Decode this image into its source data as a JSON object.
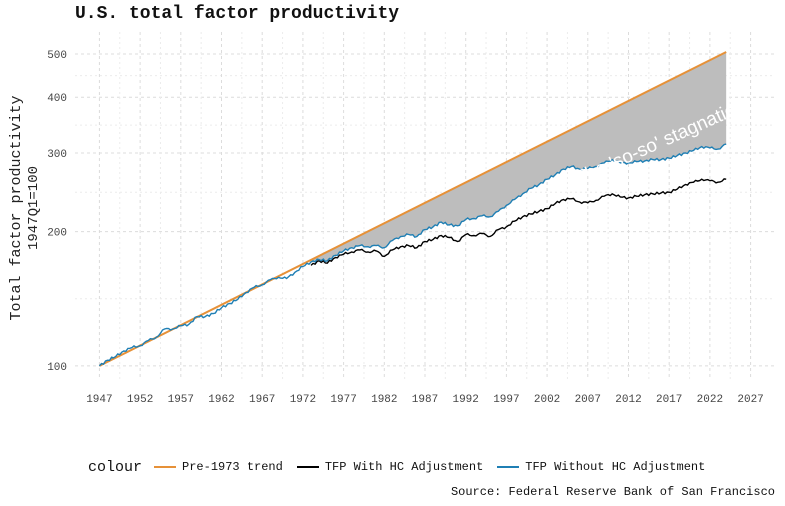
{
  "chart_data": {
    "type": "line",
    "title": "U.S. total factor productivity",
    "ylabel_line1": "Total factor productivity",
    "ylabel_line2": "1947Q1=100",
    "xlabel": "",
    "y_scale": "log",
    "ylim": [
      93,
      560
    ],
    "xlim": [
      1944,
      2030
    ],
    "y_ticks": [
      100,
      200,
      300,
      400,
      500
    ],
    "x_ticks": [
      1947,
      1952,
      1957,
      1962,
      1967,
      1972,
      1977,
      1982,
      1987,
      1992,
      1997,
      2002,
      2007,
      2012,
      2017,
      2022,
      2027
    ],
    "grid": true,
    "legend_title": "colour",
    "legend_position": "bottom",
    "annotation": "The 'so-so' stagnation",
    "source": "Source: Federal Reserve Bank of San Francisco",
    "shaded_region": "between Pre-1973 trend and TFP Without HC Adjustment after 1973",
    "series": [
      {
        "name": "Pre-1973 trend",
        "color": "#e69138",
        "x": [
          1947,
          2024
        ],
        "values": [
          100,
          505
        ]
      },
      {
        "name": "TFP With HC Adjustment",
        "color": "#000000",
        "x": [
          1973,
          1974,
          1975,
          1976,
          1977,
          1978,
          1979,
          1980,
          1981,
          1982,
          1983,
          1984,
          1985,
          1986,
          1987,
          1988,
          1989,
          1990,
          1991,
          1992,
          1993,
          1994,
          1995,
          1996,
          1997,
          1998,
          1999,
          2000,
          2001,
          2002,
          2003,
          2004,
          2005,
          2006,
          2007,
          2008,
          2009,
          2010,
          2011,
          2012,
          2013,
          2014,
          2015,
          2016,
          2017,
          2018,
          2019,
          2020,
          2021,
          2022,
          2023,
          2024
        ],
        "values": [
          168,
          172,
          170,
          175,
          178,
          180,
          182,
          180,
          181,
          176,
          182,
          185,
          186,
          184,
          190,
          192,
          196,
          194,
          190,
          197,
          196,
          198,
          195,
          202,
          205,
          211,
          216,
          219,
          222,
          225,
          231,
          236,
          237,
          233,
          232,
          235,
          240,
          243,
          239,
          238,
          240,
          242,
          243,
          244,
          245,
          249,
          255,
          258,
          262,
          260,
          258,
          262
        ]
      },
      {
        "name": "TFP Without HC Adjustment",
        "color": "#1f7fb4",
        "x": [
          1947,
          1948,
          1949,
          1950,
          1951,
          1952,
          1953,
          1954,
          1955,
          1956,
          1957,
          1958,
          1959,
          1960,
          1961,
          1962,
          1963,
          1964,
          1965,
          1966,
          1967,
          1968,
          1969,
          1970,
          1971,
          1972,
          1973,
          1974,
          1975,
          1976,
          1977,
          1978,
          1979,
          1980,
          1981,
          1982,
          1983,
          1984,
          1985,
          1986,
          1987,
          1988,
          1989,
          1990,
          1991,
          1992,
          1993,
          1994,
          1995,
          1996,
          1997,
          1998,
          1999,
          2000,
          2001,
          2002,
          2003,
          2004,
          2005,
          2006,
          2007,
          2008,
          2009,
          2010,
          2011,
          2012,
          2013,
          2014,
          2015,
          2016,
          2017,
          2018,
          2019,
          2020,
          2021,
          2022,
          2023,
          2024
        ],
        "values": [
          100,
          103,
          105,
          108,
          110,
          111,
          114,
          116,
          121,
          121,
          123,
          124,
          129,
          129,
          131,
          135,
          138,
          141,
          146,
          150,
          152,
          156,
          158,
          157,
          162,
          167,
          171,
          173,
          172,
          177,
          181,
          184,
          186,
          185,
          186,
          184,
          191,
          195,
          197,
          195,
          202,
          205,
          210,
          207,
          206,
          213,
          214,
          217,
          216,
          222,
          229,
          236,
          243,
          250,
          255,
          262,
          268,
          276,
          280,
          276,
          277,
          280,
          285,
          290,
          285,
          285,
          287,
          288,
          290,
          290,
          292,
          296,
          300,
          304,
          310,
          308,
          306,
          314
        ]
      }
    ]
  }
}
